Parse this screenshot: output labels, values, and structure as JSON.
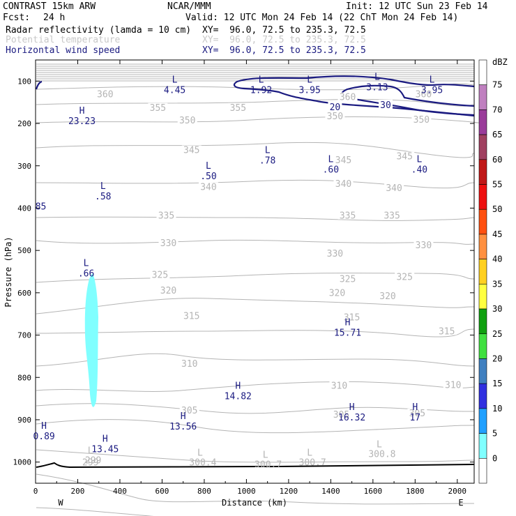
{
  "header": {
    "model": "CONTRAST 15km ARW",
    "org": "NCAR/MMM",
    "init": "Init: 12 UTC Sun 23 Feb 14",
    "fcst_label": "Fcst:",
    "fcst_value": "24 h",
    "valid": "Valid: 12 UTC Mon 24 Feb 14 (22 ChT Mon 24 Feb 14)",
    "fields": [
      {
        "name": "Radar reflectivity (lamda = 10 cm)",
        "xy": "XY=  96.0, 72.5 to 235.3, 72.5",
        "color": "#000000"
      },
      {
        "name": "Potential temperature",
        "xy": "XY=  96.0, 72.5 to 235.3, 72.5",
        "color": "#c8c8c8"
      },
      {
        "name": "Horizontal wind speed",
        "xy": "XY=  96.0, 72.5 to 235.3, 72.5",
        "color": "#1a1a80"
      }
    ]
  },
  "chart_data": {
    "type": "cross-section contour",
    "ylabel": "Pressure (hPa)",
    "xlabel": "Distance (km)",
    "x_ticks": [
      "0",
      "200",
      "400",
      "600",
      "800",
      "1000",
      "1200",
      "1400",
      "1600",
      "1800",
      "2000"
    ],
    "x_range": [
      0,
      2080
    ],
    "y_ticks": [
      "100",
      "200",
      "300",
      "400",
      "500",
      "600",
      "700",
      "800",
      "900",
      "1000"
    ],
    "y_range": [
      50,
      1050
    ],
    "west_label": "W",
    "east_label": "E",
    "colorbar": {
      "unit": "dBZ",
      "labels": [
        "75",
        "70",
        "65",
        "60",
        "55",
        "50",
        "45",
        "40",
        "35",
        "30",
        "25",
        "20",
        "15",
        "10",
        "5",
        "0"
      ],
      "colors": [
        "#ffffff",
        "#c080c0",
        "#9a3c9a",
        "#a04060",
        "#c01818",
        "#ee1010",
        "#ff5010",
        "#ff9040",
        "#ffd020",
        "#ffff40",
        "#10a010",
        "#40e040",
        "#4080c0",
        "#3030e0",
        "#20a0ff",
        "#80ffff",
        "#ffffff"
      ]
    },
    "theta_labels": [
      {
        "text": "360",
        "x": 330,
        "p": 133
      },
      {
        "text": "360",
        "x": 1840,
        "p": 133
      },
      {
        "text": "360",
        "x": 1480,
        "p": 140
      },
      {
        "text": "355",
        "x": 580,
        "p": 165
      },
      {
        "text": "355",
        "x": 960,
        "p": 165
      },
      {
        "text": "350",
        "x": 720,
        "p": 195
      },
      {
        "text": "350",
        "x": 1420,
        "p": 185
      },
      {
        "text": "350",
        "x": 1830,
        "p": 193
      },
      {
        "text": "345",
        "x": 740,
        "p": 265
      },
      {
        "text": "345",
        "x": 1460,
        "p": 289
      },
      {
        "text": "345",
        "x": 1750,
        "p": 280
      },
      {
        "text": "340",
        "x": 820,
        "p": 352
      },
      {
        "text": "340",
        "x": 1460,
        "p": 345
      },
      {
        "text": "340",
        "x": 1700,
        "p": 355
      },
      {
        "text": "335",
        "x": 620,
        "p": 420
      },
      {
        "text": "335",
        "x": 1480,
        "p": 420
      },
      {
        "text": "335",
        "x": 1690,
        "p": 420
      },
      {
        "text": "330",
        "x": 630,
        "p": 485
      },
      {
        "text": "330",
        "x": 1420,
        "p": 510
      },
      {
        "text": "330",
        "x": 1840,
        "p": 490
      },
      {
        "text": "325",
        "x": 590,
        "p": 560
      },
      {
        "text": "325",
        "x": 1480,
        "p": 570
      },
      {
        "text": "325",
        "x": 1750,
        "p": 565
      },
      {
        "text": "320",
        "x": 630,
        "p": 597
      },
      {
        "text": "320",
        "x": 1430,
        "p": 603
      },
      {
        "text": "320",
        "x": 1670,
        "p": 610
      },
      {
        "text": "315",
        "x": 740,
        "p": 657
      },
      {
        "text": "315",
        "x": 1500,
        "p": 660
      },
      {
        "text": "315",
        "x": 1950,
        "p": 693
      },
      {
        "text": "310",
        "x": 730,
        "p": 770
      },
      {
        "text": "310",
        "x": 1440,
        "p": 822
      },
      {
        "text": "310",
        "x": 1980,
        "p": 820
      },
      {
        "text": "305",
        "x": 730,
        "p": 880
      },
      {
        "text": "305",
        "x": 1450,
        "p": 890
      },
      {
        "text": "305",
        "x": 1810,
        "p": 887
      },
      {
        "text": "299",
        "x": 260,
        "p": 1003
      }
    ],
    "surface_theta_extremes": [
      {
        "kind": "L",
        "value": "299",
        "x": 260,
        "p": 980
      },
      {
        "kind": "L",
        "value": "300.4",
        "x": 780,
        "p": 985
      },
      {
        "kind": "L",
        "value": "300.7",
        "x": 1090,
        "p": 990
      },
      {
        "kind": "L",
        "value": "300.7",
        "x": 1300,
        "p": 985
      },
      {
        "kind": "L",
        "value": "300.8",
        "x": 1630,
        "p": 965
      }
    ],
    "wind_contours": [
      {
        "label": "20",
        "x": 1420,
        "p": 162
      },
      {
        "label": "30",
        "x": 1660,
        "p": 157
      }
    ],
    "wind_extremes": [
      {
        "kind": "L",
        "value": "4.45",
        "x": 660,
        "p": 107
      },
      {
        "kind": "L",
        "value": "1.92",
        "x": 1070,
        "p": 107
      },
      {
        "kind": "L",
        "value": "3.95",
        "x": 1300,
        "p": 107
      },
      {
        "kind": "L",
        "value": "3.13",
        "x": 1620,
        "p": 100
      },
      {
        "kind": "L",
        "value": "3.95",
        "x": 1880,
        "p": 107
      },
      {
        "kind": "H",
        "value": "23.23",
        "x": 220,
        "p": 180
      },
      {
        "kind": "L",
        "value": ".78",
        "x": 1100,
        "p": 273
      },
      {
        "kind": "L",
        "value": ".50",
        "x": 820,
        "p": 310
      },
      {
        "kind": "L",
        "value": ".60",
        "x": 1400,
        "p": 295
      },
      {
        "kind": "L",
        "value": ".40",
        "x": 1820,
        "p": 295
      },
      {
        "kind": "L",
        "value": ".58",
        "x": 320,
        "p": 358
      },
      {
        "kind": "",
        "value": "85",
        "x": 25,
        "p": 382
      },
      {
        "kind": "L",
        "value": ".66",
        "x": 240,
        "p": 540
      },
      {
        "kind": "H",
        "value": "15.71",
        "x": 1480,
        "p": 680
      },
      {
        "kind": "H",
        "value": "14.82",
        "x": 960,
        "p": 830
      },
      {
        "kind": "H",
        "value": "16.32",
        "x": 1500,
        "p": 880
      },
      {
        "kind": "H",
        "value": "17",
        "x": 1800,
        "p": 880
      },
      {
        "kind": "H",
        "value": "13.56",
        "x": 700,
        "p": 902
      },
      {
        "kind": "H",
        "value": "0.89",
        "x": 40,
        "p": 925
      },
      {
        "kind": "H",
        "value": "13.45",
        "x": 330,
        "p": 955
      }
    ]
  }
}
